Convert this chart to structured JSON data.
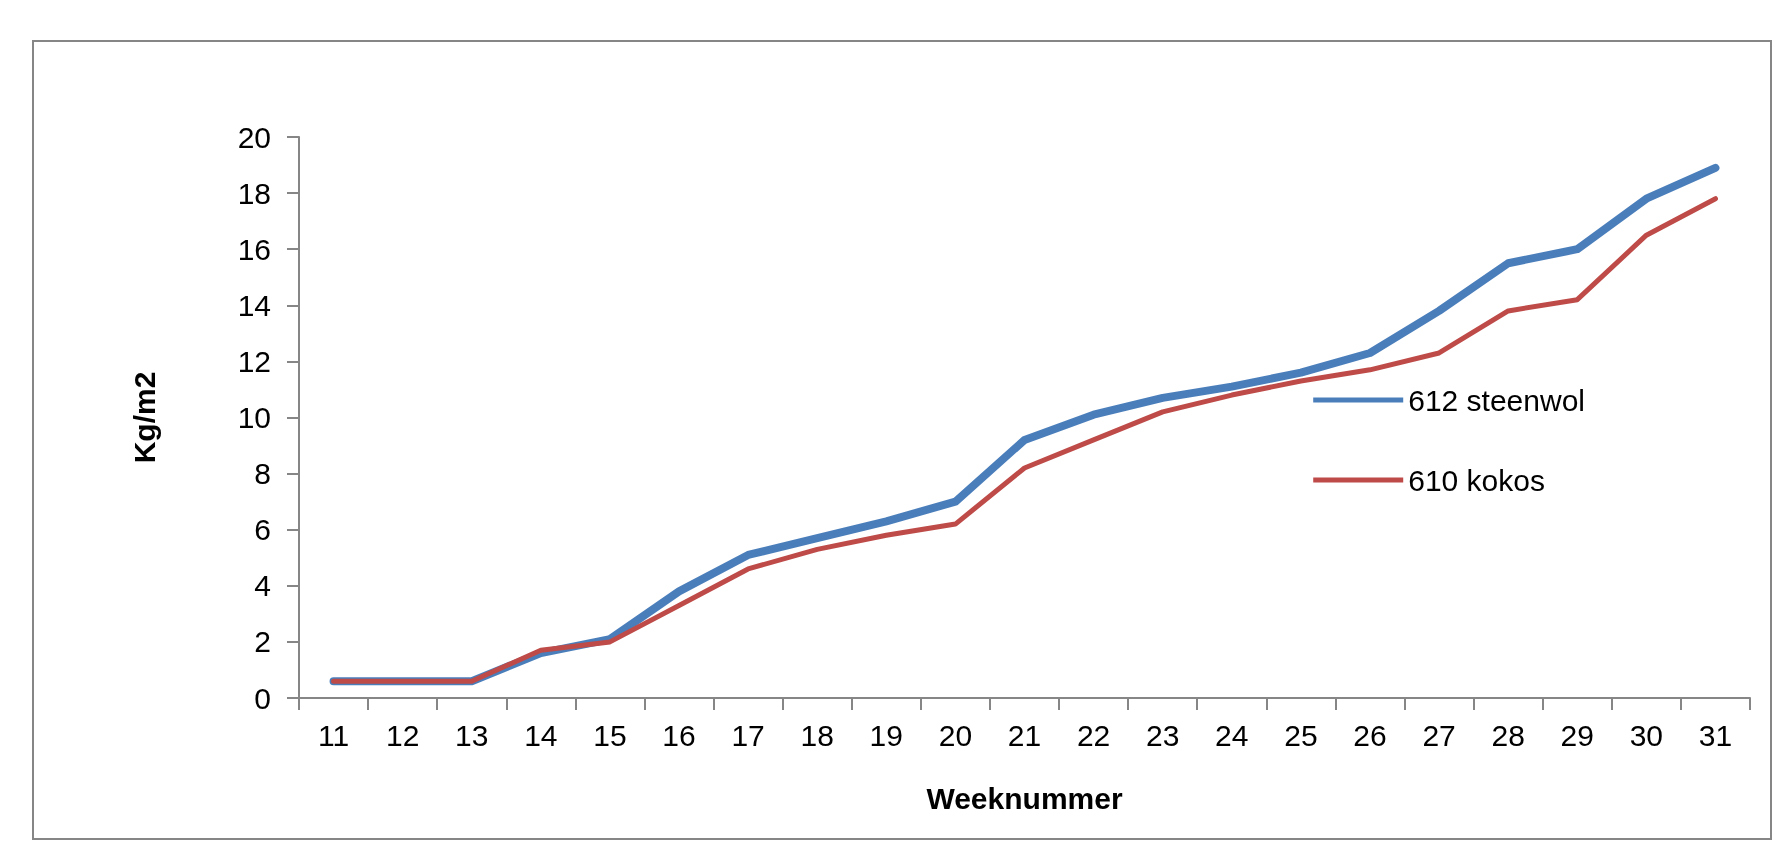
{
  "chart_data": {
    "type": "line",
    "xlabel": "Weeknummer",
    "ylabel": "Kg/m2",
    "categories": [
      "11",
      "12",
      "13",
      "14",
      "15",
      "16",
      "17",
      "18",
      "19",
      "20",
      "21",
      "22",
      "23",
      "24",
      "25",
      "26",
      "27",
      "28",
      "29",
      "30",
      "31"
    ],
    "series": [
      {
        "name": "612 steenwol",
        "color": "#4a7ebb",
        "values": [
          0.6,
          0.6,
          0.6,
          1.6,
          2.1,
          3.8,
          5.1,
          5.7,
          6.3,
          7.0,
          9.2,
          10.1,
          10.7,
          11.1,
          11.6,
          12.3,
          13.8,
          15.5,
          16.0,
          17.8,
          18.9
        ]
      },
      {
        "name": "610 kokos",
        "color": "#be4b48",
        "values": [
          0.6,
          0.6,
          0.6,
          1.7,
          2.0,
          3.3,
          4.6,
          5.3,
          5.8,
          6.2,
          8.2,
          9.2,
          10.2,
          10.8,
          11.3,
          11.7,
          12.3,
          13.8,
          14.2,
          16.5,
          17.8
        ]
      }
    ],
    "ylim": [
      0,
      20
    ],
    "yticks": [
      0,
      2,
      4,
      6,
      8,
      10,
      12,
      14,
      16,
      18,
      20
    ],
    "grid": false,
    "legend": "right",
    "marker": "none",
    "line_style": "solid"
  }
}
